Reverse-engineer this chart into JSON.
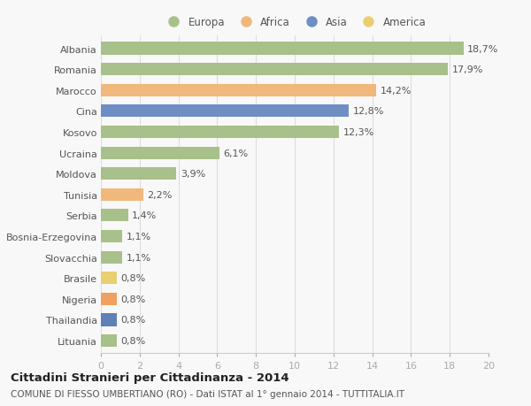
{
  "categories": [
    "Albania",
    "Romania",
    "Marocco",
    "Cina",
    "Kosovo",
    "Ucraina",
    "Moldova",
    "Tunisia",
    "Serbia",
    "Bosnia-Erzegovina",
    "Slovacchia",
    "Brasile",
    "Nigeria",
    "Thailandia",
    "Lituania"
  ],
  "values": [
    18.7,
    17.9,
    14.2,
    12.8,
    12.3,
    6.1,
    3.9,
    2.2,
    1.4,
    1.1,
    1.1,
    0.8,
    0.8,
    0.8,
    0.8
  ],
  "labels": [
    "18,7%",
    "17,9%",
    "14,2%",
    "12,8%",
    "12,3%",
    "6,1%",
    "3,9%",
    "2,2%",
    "1,4%",
    "1,1%",
    "1,1%",
    "0,8%",
    "0,8%",
    "0,8%",
    "0,8%"
  ],
  "colors": [
    "#a8c08a",
    "#a8c08a",
    "#f0b87a",
    "#6e8ec4",
    "#a8c08a",
    "#a8c08a",
    "#a8c08a",
    "#f0b87a",
    "#a8c08a",
    "#a8c08a",
    "#a8c08a",
    "#e8d070",
    "#f0a060",
    "#6080b8",
    "#a8c08a"
  ],
  "legend_labels": [
    "Europa",
    "Africa",
    "Asia",
    "America"
  ],
  "legend_colors": [
    "#a8c08a",
    "#f0b87a",
    "#6e8ec4",
    "#e8d070"
  ],
  "xlim": [
    0,
    20
  ],
  "xticks": [
    0,
    2,
    4,
    6,
    8,
    10,
    12,
    14,
    16,
    18,
    20
  ],
  "title": "Cittadini Stranieri per Cittadinanza - 2014",
  "subtitle": "COMUNE DI FIESSO UMBERTIANO (RO) - Dati ISTAT al 1° gennaio 2014 - TUTTITALIA.IT",
  "bg_color": "#f8f8f8",
  "bar_height": 0.6,
  "label_fontsize": 8.0,
  "tick_fontsize": 8.0,
  "title_fontsize": 9.5,
  "subtitle_fontsize": 7.5
}
